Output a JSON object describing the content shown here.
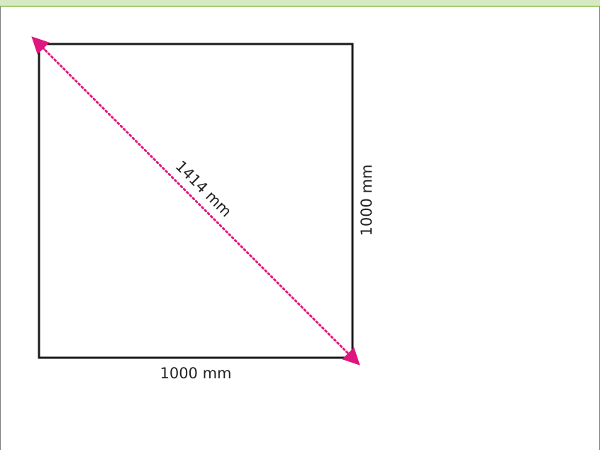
{
  "diagram": {
    "diagonal_label": "1414 mm",
    "side_label": "1000 mm",
    "bottom_label": "1000 mm",
    "colors": {
      "square_stroke": "#1a1a1a",
      "diagonal": "#e0157f",
      "header_bar": "#d6e9c3",
      "header_line": "#a2cd74"
    }
  }
}
